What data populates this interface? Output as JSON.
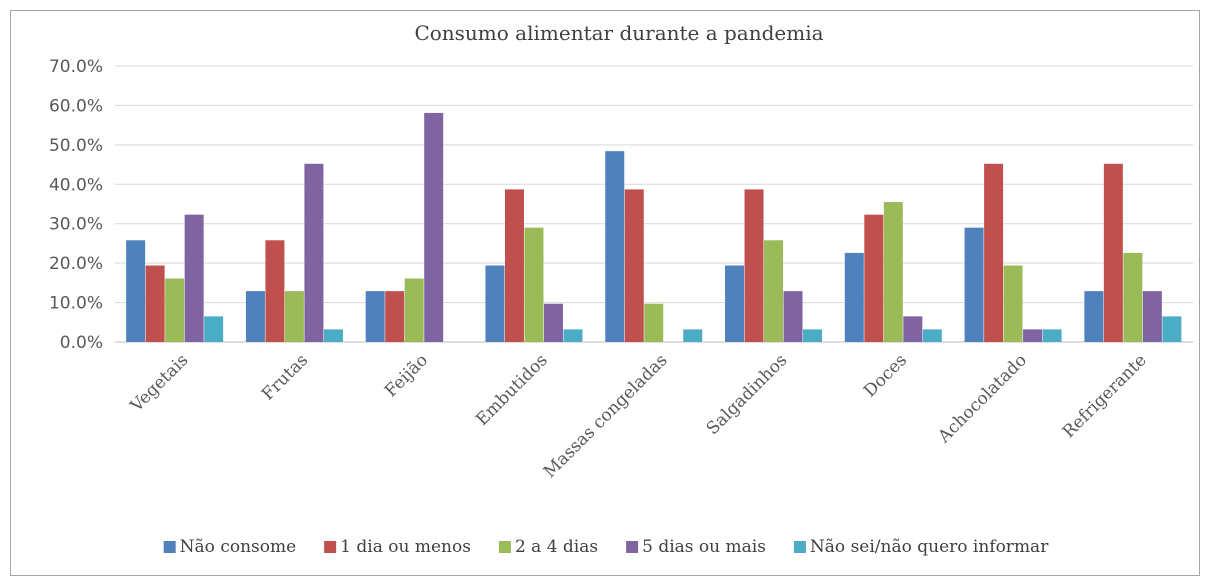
{
  "chart_data": {
    "type": "bar",
    "title": "Consumo alimentar durante a pandemia",
    "categories": [
      "Vegetais",
      "Frutas",
      "Feijão",
      "Embutidos",
      "Massas congeladas",
      "Salgadinhos",
      "Doces",
      "Achocolatado",
      "Refrigerante"
    ],
    "y_tick_labels": [
      "0.0%",
      "10.0%",
      "20.0%",
      "30.0%",
      "40.0%",
      "50.0%",
      "60.0%",
      "70.0%"
    ],
    "ylim": [
      0,
      70
    ],
    "y_unit": "%",
    "grid": true,
    "legend_position": "bottom",
    "series": [
      {
        "name": "Não consome",
        "color": "#4f81bd",
        "values": [
          25.8,
          12.9,
          12.9,
          19.4,
          48.4,
          19.4,
          22.6,
          29.0,
          12.9
        ]
      },
      {
        "name": "1 dia ou menos",
        "color": "#c0504d",
        "values": [
          19.4,
          25.8,
          12.9,
          38.7,
          38.7,
          38.7,
          32.3,
          45.2,
          45.2
        ]
      },
      {
        "name": "2 a 4 dias",
        "color": "#9bbb59",
        "values": [
          16.1,
          12.9,
          16.1,
          29.0,
          9.7,
          25.8,
          35.5,
          19.4,
          22.6
        ]
      },
      {
        "name": "5 dias ou mais",
        "color": "#8064a2",
        "values": [
          32.3,
          45.2,
          58.1,
          9.7,
          0,
          12.9,
          6.5,
          3.2,
          12.9
        ]
      },
      {
        "name": "Não sei/não quero informar",
        "color": "#4bacc6",
        "values": [
          6.5,
          3.2,
          0,
          3.2,
          3.2,
          3.2,
          3.2,
          3.2,
          6.5
        ]
      }
    ]
  }
}
